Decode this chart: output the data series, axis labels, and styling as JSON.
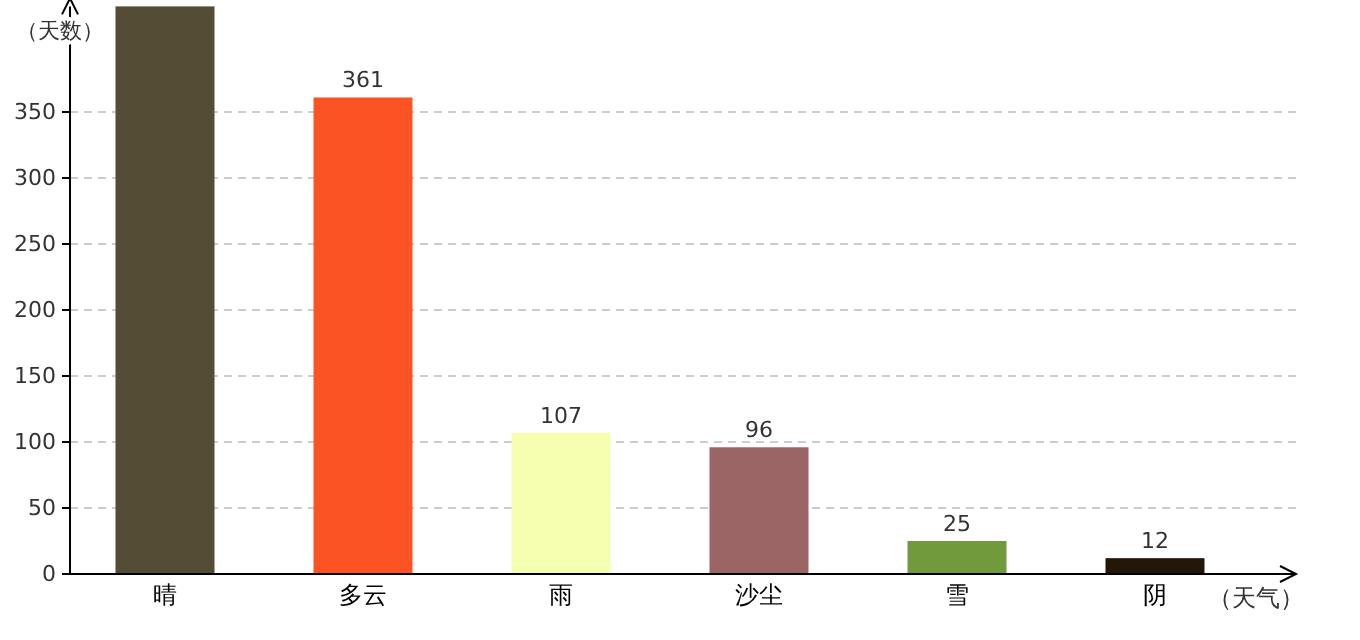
{
  "chart_data": {
    "type": "bar",
    "xlabel": "（天气）",
    "ylabel": "（天数）",
    "categories": [
      "晴",
      "多云",
      "雨",
      "沙尘",
      "雪",
      "阴"
    ],
    "values": [
      430,
      361,
      107,
      96,
      25,
      12
    ],
    "colors": [
      "#554c36",
      "#fb5324",
      "#f6ffb0",
      "#9b6565",
      "#719a3d",
      "#231808"
    ],
    "value_labels": [
      null,
      "361",
      "107",
      "96",
      "25",
      "12"
    ],
    "ylim": [
      0,
      430
    ],
    "yticks": [
      0,
      50,
      100,
      150,
      200,
      250,
      300,
      350
    ],
    "grid": "y"
  }
}
